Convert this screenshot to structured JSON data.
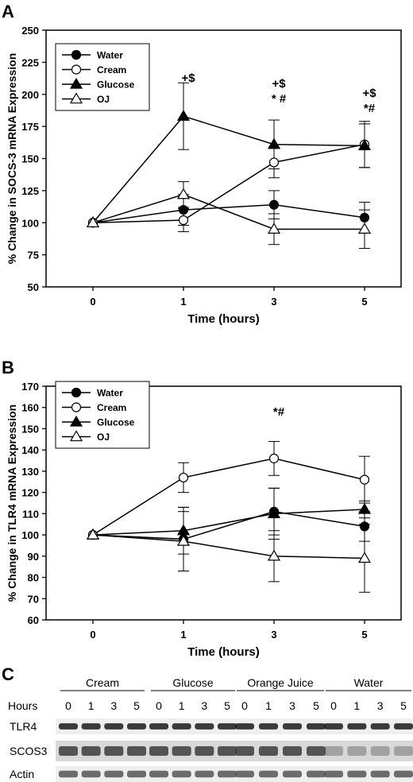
{
  "panels": {
    "a": {
      "letter": "A"
    },
    "b": {
      "letter": "B"
    },
    "c": {
      "letter": "C"
    }
  },
  "chart_data": [
    {
      "type": "line",
      "panel": "A",
      "ylabel": "% Change in SOCS-3 mRNA Expression",
      "xlabel": "Time (hours)",
      "categories": [
        "0",
        "1",
        "3",
        "5"
      ],
      "yticks": [
        50,
        75,
        100,
        125,
        150,
        175,
        200,
        225,
        250
      ],
      "ylim": [
        50,
        250
      ],
      "legend_position": "top-left",
      "series": [
        {
          "name": "Water",
          "marker": "circle-filled",
          "values": [
            100,
            110,
            114,
            104
          ],
          "errors": [
            0,
            12,
            11,
            12
          ]
        },
        {
          "name": "Cream",
          "marker": "circle-open",
          "values": [
            100,
            102,
            147,
            161
          ],
          "errors": [
            0,
            9,
            12,
            18
          ]
        },
        {
          "name": "Glucose",
          "marker": "triangle-filled",
          "values": [
            100,
            183,
            161,
            160
          ],
          "errors": [
            0,
            26,
            19,
            17
          ]
        },
        {
          "name": "OJ",
          "marker": "triangle-open",
          "values": [
            100,
            122,
            95,
            95
          ],
          "errors": [
            0,
            10,
            12,
            15
          ]
        }
      ],
      "annotations": [
        {
          "x": "1",
          "lines": [
            "+$"
          ]
        },
        {
          "x": "3",
          "lines": [
            "+$",
            "* #"
          ]
        },
        {
          "x": "5",
          "lines": [
            "+$",
            "*#"
          ]
        }
      ]
    },
    {
      "type": "line",
      "panel": "B",
      "ylabel": "% Change in TLR4 mRNA Expression",
      "xlabel": "Time (hours)",
      "categories": [
        "0",
        "1",
        "3",
        "5"
      ],
      "yticks": [
        60,
        70,
        80,
        90,
        100,
        110,
        120,
        130,
        140,
        150,
        160,
        170
      ],
      "ylim": [
        60,
        170
      ],
      "legend_position": "top-left",
      "series": [
        {
          "name": "Water",
          "marker": "circle-filled",
          "values": [
            100,
            98,
            111,
            104
          ],
          "errors": [
            0,
            15,
            11,
            7
          ]
        },
        {
          "name": "Cream",
          "marker": "circle-open",
          "values": [
            100,
            127,
            136,
            126
          ],
          "errors": [
            0,
            7,
            8,
            11
          ]
        },
        {
          "name": "Glucose",
          "marker": "triangle-filled",
          "values": [
            100,
            102,
            110,
            112
          ],
          "errors": [
            0,
            11,
            12,
            4
          ]
        },
        {
          "name": "OJ",
          "marker": "triangle-open",
          "values": [
            100,
            97,
            90,
            89
          ],
          "errors": [
            0,
            14,
            12,
            16
          ]
        }
      ],
      "annotations": [
        {
          "x": "3",
          "lines": [
            "*#"
          ]
        }
      ]
    }
  ],
  "blot": {
    "groups": [
      "Cream",
      "Glucose",
      "Orange Juice",
      "Water"
    ],
    "hours_label": "Hours",
    "hours": [
      "0",
      "1",
      "3",
      "5"
    ],
    "rows": [
      {
        "label": "TLR4",
        "band_color": "#1a1a1a"
      },
      {
        "label": "SCOS3",
        "band_color": "#3c3c3c"
      },
      {
        "label": "Actin",
        "band_color": "#555555"
      }
    ]
  }
}
